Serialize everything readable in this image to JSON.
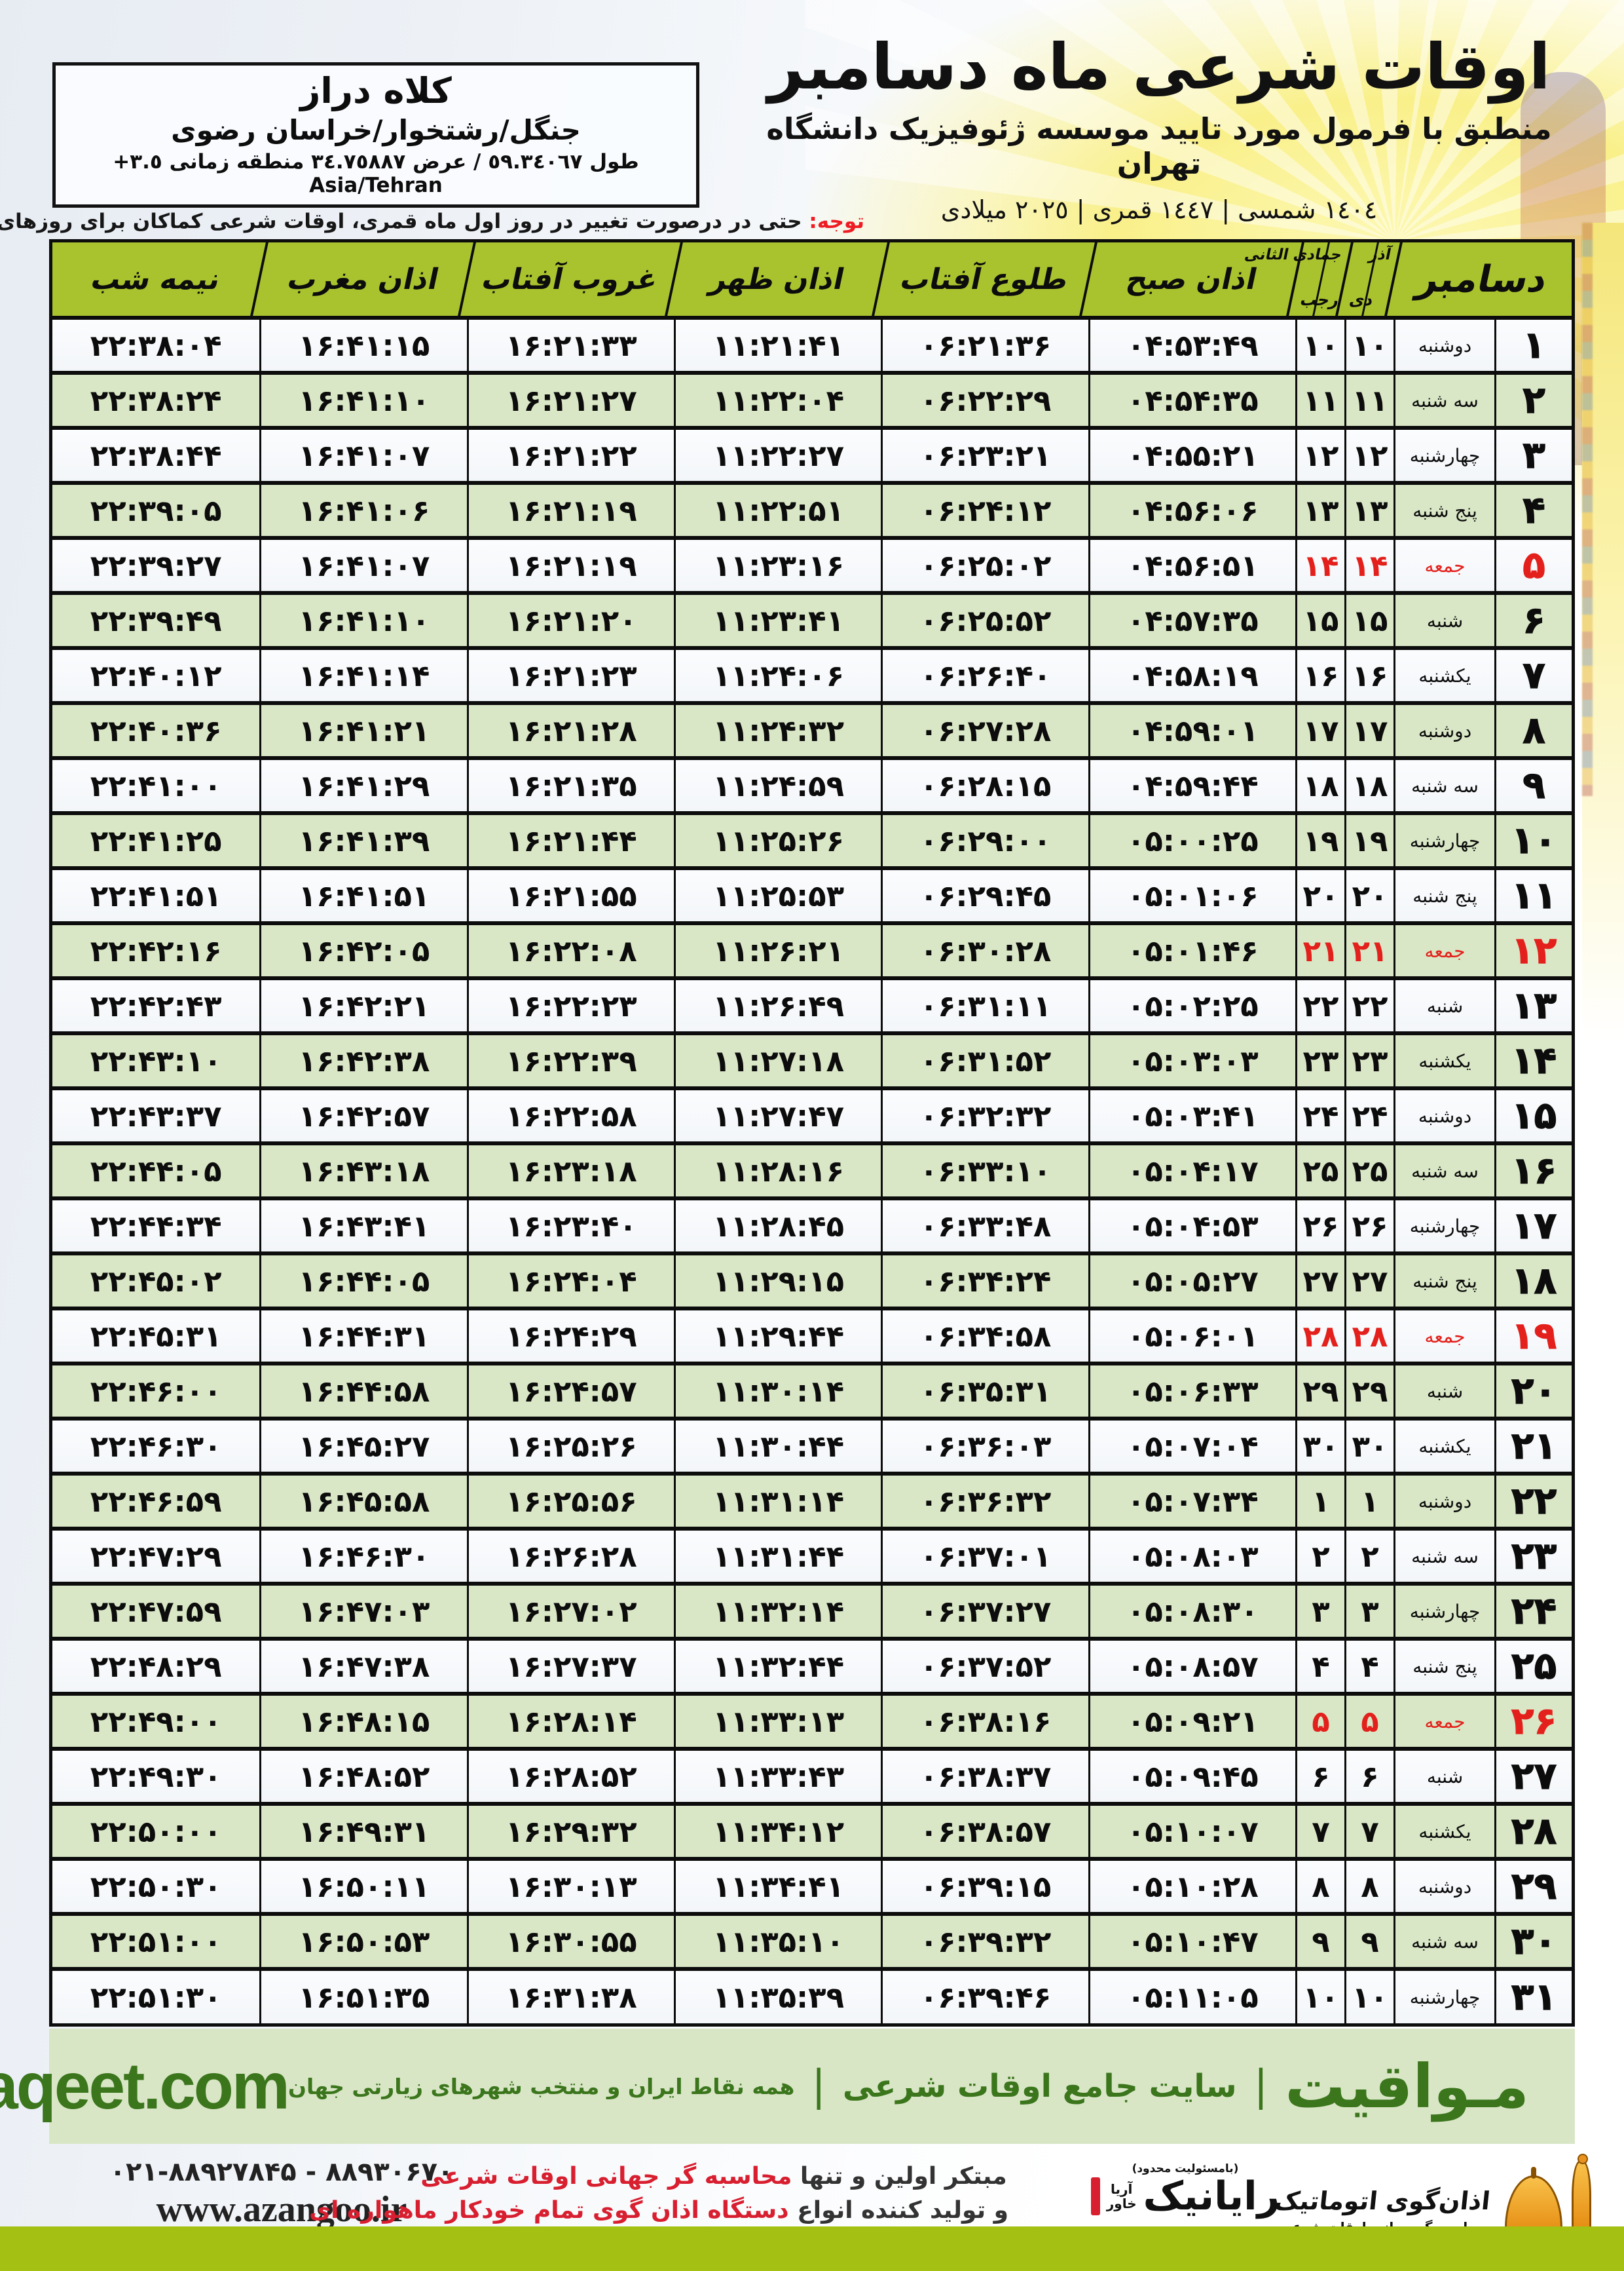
{
  "header": {
    "title": "اوقات شرعی ماه دسامبر",
    "subtitle": "منطبق با فرمول مورد تایید موسسه ژئوفیزیک دانشگاه تهران",
    "date_line": "١٤٠٤ شمسی | ١٤٤٧ قمری | ٢٠٢٥ میلادی"
  },
  "location": {
    "name": "کلاه دراز",
    "region": "جنگل/رشتخوار/خراسان رضوی",
    "coords": "طول ٥٩.٣٤٠٦٧ / عرض ٣٤.٧٥٨٨٧ منطقه زمانی ٣.٥+ Asia/Tehran"
  },
  "notice": {
    "label": "توجه:",
    "text": "حتی در درصورت تغییر در روز اول ماه قمری، اوقات شرعی کماکان برای روزهای شمسی و میلادی معتبر است."
  },
  "table": {
    "headers": {
      "december": "دسامبر",
      "solar_top": "آذر",
      "solar_bottom": "دی",
      "lunar_top": "جمادی الثانی",
      "lunar_bottom": "رجب",
      "sobh": "اذان صبح",
      "tolu": "طلوع آفتاب",
      "zohr": "اذان ظهر",
      "ghorub": "غروب آفتاب",
      "maghreb": "اذان مغرب",
      "nime": "نیمه شب"
    },
    "rows": [
      {
        "day": "۱",
        "weekday": "دوشنبه",
        "solar": "۱۰",
        "lunar": "۱۰",
        "sobh": "۰۴:۵۳:۴۹",
        "tolu": "۰۶:۲۱:۳۶",
        "zohr": "۱۱:۲۱:۴۱",
        "ghorub": "۱۶:۲۱:۳۳",
        "maghreb": "۱۶:۴۱:۱۵",
        "nime": "۲۲:۳۸:۰۴",
        "friday": false
      },
      {
        "day": "۲",
        "weekday": "سه شنبه",
        "solar": "۱۱",
        "lunar": "۱۱",
        "sobh": "۰۴:۵۴:۳۵",
        "tolu": "۰۶:۲۲:۲۹",
        "zohr": "۱۱:۲۲:۰۴",
        "ghorub": "۱۶:۲۱:۲۷",
        "maghreb": "۱۶:۴۱:۱۰",
        "nime": "۲۲:۳۸:۲۴",
        "friday": false
      },
      {
        "day": "۳",
        "weekday": "چهارشنبه",
        "solar": "۱۲",
        "lunar": "۱۲",
        "sobh": "۰۴:۵۵:۲۱",
        "tolu": "۰۶:۲۳:۲۱",
        "zohr": "۱۱:۲۲:۲۷",
        "ghorub": "۱۶:۲۱:۲۲",
        "maghreb": "۱۶:۴۱:۰۷",
        "nime": "۲۲:۳۸:۴۴",
        "friday": false
      },
      {
        "day": "۴",
        "weekday": "پنج شنبه",
        "solar": "۱۳",
        "lunar": "۱۳",
        "sobh": "۰۴:۵۶:۰۶",
        "tolu": "۰۶:۲۴:۱۲",
        "zohr": "۱۱:۲۲:۵۱",
        "ghorub": "۱۶:۲۱:۱۹",
        "maghreb": "۱۶:۴۱:۰۶",
        "nime": "۲۲:۳۹:۰۵",
        "friday": false
      },
      {
        "day": "۵",
        "weekday": "جمعه",
        "solar": "۱۴",
        "lunar": "۱۴",
        "sobh": "۰۴:۵۶:۵۱",
        "tolu": "۰۶:۲۵:۰۲",
        "zohr": "۱۱:۲۳:۱۶",
        "ghorub": "۱۶:۲۱:۱۹",
        "maghreb": "۱۶:۴۱:۰۷",
        "nime": "۲۲:۳۹:۲۷",
        "friday": true
      },
      {
        "day": "۶",
        "weekday": "شنبه",
        "solar": "۱۵",
        "lunar": "۱۵",
        "sobh": "۰۴:۵۷:۳۵",
        "tolu": "۰۶:۲۵:۵۲",
        "zohr": "۱۱:۲۳:۴۱",
        "ghorub": "۱۶:۲۱:۲۰",
        "maghreb": "۱۶:۴۱:۱۰",
        "nime": "۲۲:۳۹:۴۹",
        "friday": false
      },
      {
        "day": "۷",
        "weekday": "یکشنبه",
        "solar": "۱۶",
        "lunar": "۱۶",
        "sobh": "۰۴:۵۸:۱۹",
        "tolu": "۰۶:۲۶:۴۰",
        "zohr": "۱۱:۲۴:۰۶",
        "ghorub": "۱۶:۲۱:۲۳",
        "maghreb": "۱۶:۴۱:۱۴",
        "nime": "۲۲:۴۰:۱۲",
        "friday": false
      },
      {
        "day": "۸",
        "weekday": "دوشنبه",
        "solar": "۱۷",
        "lunar": "۱۷",
        "sobh": "۰۴:۵۹:۰۱",
        "tolu": "۰۶:۲۷:۲۸",
        "zohr": "۱۱:۲۴:۳۲",
        "ghorub": "۱۶:۲۱:۲۸",
        "maghreb": "۱۶:۴۱:۲۱",
        "nime": "۲۲:۴۰:۳۶",
        "friday": false
      },
      {
        "day": "۹",
        "weekday": "سه شنبه",
        "solar": "۱۸",
        "lunar": "۱۸",
        "sobh": "۰۴:۵۹:۴۴",
        "tolu": "۰۶:۲۸:۱۵",
        "zohr": "۱۱:۲۴:۵۹",
        "ghorub": "۱۶:۲۱:۳۵",
        "maghreb": "۱۶:۴۱:۲۹",
        "nime": "۲۲:۴۱:۰۰",
        "friday": false
      },
      {
        "day": "۱۰",
        "weekday": "چهارشنبه",
        "solar": "۱۹",
        "lunar": "۱۹",
        "sobh": "۰۵:۰۰:۲۵",
        "tolu": "۰۶:۲۹:۰۰",
        "zohr": "۱۱:۲۵:۲۶",
        "ghorub": "۱۶:۲۱:۴۴",
        "maghreb": "۱۶:۴۱:۳۹",
        "nime": "۲۲:۴۱:۲۵",
        "friday": false
      },
      {
        "day": "۱۱",
        "weekday": "پنج شنبه",
        "solar": "۲۰",
        "lunar": "۲۰",
        "sobh": "۰۵:۰۱:۰۶",
        "tolu": "۰۶:۲۹:۴۵",
        "zohr": "۱۱:۲۵:۵۳",
        "ghorub": "۱۶:۲۱:۵۵",
        "maghreb": "۱۶:۴۱:۵۱",
        "nime": "۲۲:۴۱:۵۱",
        "friday": false
      },
      {
        "day": "۱۲",
        "weekday": "جمعه",
        "solar": "۲۱",
        "lunar": "۲۱",
        "sobh": "۰۵:۰۱:۴۶",
        "tolu": "۰۶:۳۰:۲۸",
        "zohr": "۱۱:۲۶:۲۱",
        "ghorub": "۱۶:۲۲:۰۸",
        "maghreb": "۱۶:۴۲:۰۵",
        "nime": "۲۲:۴۲:۱۶",
        "friday": true
      },
      {
        "day": "۱۳",
        "weekday": "شنبه",
        "solar": "۲۲",
        "lunar": "۲۲",
        "sobh": "۰۵:۰۲:۲۵",
        "tolu": "۰۶:۳۱:۱۱",
        "zohr": "۱۱:۲۶:۴۹",
        "ghorub": "۱۶:۲۲:۲۳",
        "maghreb": "۱۶:۴۲:۲۱",
        "nime": "۲۲:۴۲:۴۳",
        "friday": false
      },
      {
        "day": "۱۴",
        "weekday": "یکشنبه",
        "solar": "۲۳",
        "lunar": "۲۳",
        "sobh": "۰۵:۰۳:۰۳",
        "tolu": "۰۶:۳۱:۵۲",
        "zohr": "۱۱:۲۷:۱۸",
        "ghorub": "۱۶:۲۲:۳۹",
        "maghreb": "۱۶:۴۲:۳۸",
        "nime": "۲۲:۴۳:۱۰",
        "friday": false
      },
      {
        "day": "۱۵",
        "weekday": "دوشنبه",
        "solar": "۲۴",
        "lunar": "۲۴",
        "sobh": "۰۵:۰۳:۴۱",
        "tolu": "۰۶:۳۲:۳۲",
        "zohr": "۱۱:۲۷:۴۷",
        "ghorub": "۱۶:۲۲:۵۸",
        "maghreb": "۱۶:۴۲:۵۷",
        "nime": "۲۲:۴۳:۳۷",
        "friday": false
      },
      {
        "day": "۱۶",
        "weekday": "سه شنبه",
        "solar": "۲۵",
        "lunar": "۲۵",
        "sobh": "۰۵:۰۴:۱۷",
        "tolu": "۰۶:۳۳:۱۰",
        "zohr": "۱۱:۲۸:۱۶",
        "ghorub": "۱۶:۲۳:۱۸",
        "maghreb": "۱۶:۴۳:۱۸",
        "nime": "۲۲:۴۴:۰۵",
        "friday": false
      },
      {
        "day": "۱۷",
        "weekday": "چهارشنبه",
        "solar": "۲۶",
        "lunar": "۲۶",
        "sobh": "۰۵:۰۴:۵۳",
        "tolu": "۰۶:۳۳:۴۸",
        "zohr": "۱۱:۲۸:۴۵",
        "ghorub": "۱۶:۲۳:۴۰",
        "maghreb": "۱۶:۴۳:۴۱",
        "nime": "۲۲:۴۴:۳۴",
        "friday": false
      },
      {
        "day": "۱۸",
        "weekday": "پنج شنبه",
        "solar": "۲۷",
        "lunar": "۲۷",
        "sobh": "۰۵:۰۵:۲۷",
        "tolu": "۰۶:۳۴:۲۴",
        "zohr": "۱۱:۲۹:۱۵",
        "ghorub": "۱۶:۲۴:۰۴",
        "maghreb": "۱۶:۴۴:۰۵",
        "nime": "۲۲:۴۵:۰۲",
        "friday": false
      },
      {
        "day": "۱۹",
        "weekday": "جمعه",
        "solar": "۲۸",
        "lunar": "۲۸",
        "sobh": "۰۵:۰۶:۰۱",
        "tolu": "۰۶:۳۴:۵۸",
        "zohr": "۱۱:۲۹:۴۴",
        "ghorub": "۱۶:۲۴:۲۹",
        "maghreb": "۱۶:۴۴:۳۱",
        "nime": "۲۲:۴۵:۳۱",
        "friday": true
      },
      {
        "day": "۲۰",
        "weekday": "شنبه",
        "solar": "۲۹",
        "lunar": "۲۹",
        "sobh": "۰۵:۰۶:۳۳",
        "tolu": "۰۶:۳۵:۳۱",
        "zohr": "۱۱:۳۰:۱۴",
        "ghorub": "۱۶:۲۴:۵۷",
        "maghreb": "۱۶:۴۴:۵۸",
        "nime": "۲۲:۴۶:۰۰",
        "friday": false
      },
      {
        "day": "۲۱",
        "weekday": "یکشنبه",
        "solar": "۳۰",
        "lunar": "۳۰",
        "sobh": "۰۵:۰۷:۰۴",
        "tolu": "۰۶:۳۶:۰۳",
        "zohr": "۱۱:۳۰:۴۴",
        "ghorub": "۱۶:۲۵:۲۶",
        "maghreb": "۱۶:۴۵:۲۷",
        "nime": "۲۲:۴۶:۳۰",
        "friday": false
      },
      {
        "day": "۲۲",
        "weekday": "دوشنبه",
        "solar": "۱",
        "lunar": "۱",
        "sobh": "۰۵:۰۷:۳۴",
        "tolu": "۰۶:۳۶:۳۲",
        "zohr": "۱۱:۳۱:۱۴",
        "ghorub": "۱۶:۲۵:۵۶",
        "maghreb": "۱۶:۴۵:۵۸",
        "nime": "۲۲:۴۶:۵۹",
        "friday": false
      },
      {
        "day": "۲۳",
        "weekday": "سه شنبه",
        "solar": "۲",
        "lunar": "۲",
        "sobh": "۰۵:۰۸:۰۳",
        "tolu": "۰۶:۳۷:۰۱",
        "zohr": "۱۱:۳۱:۴۴",
        "ghorub": "۱۶:۲۶:۲۸",
        "maghreb": "۱۶:۴۶:۳۰",
        "nime": "۲۲:۴۷:۲۹",
        "friday": false
      },
      {
        "day": "۲۴",
        "weekday": "چهارشنبه",
        "solar": "۳",
        "lunar": "۳",
        "sobh": "۰۵:۰۸:۳۰",
        "tolu": "۰۶:۳۷:۲۷",
        "zohr": "۱۱:۳۲:۱۴",
        "ghorub": "۱۶:۲۷:۰۲",
        "maghreb": "۱۶:۴۷:۰۳",
        "nime": "۲۲:۴۷:۵۹",
        "friday": false
      },
      {
        "day": "۲۵",
        "weekday": "پنج شنبه",
        "solar": "۴",
        "lunar": "۴",
        "sobh": "۰۵:۰۸:۵۷",
        "tolu": "۰۶:۳۷:۵۲",
        "zohr": "۱۱:۳۲:۴۴",
        "ghorub": "۱۶:۲۷:۳۷",
        "maghreb": "۱۶:۴۷:۳۸",
        "nime": "۲۲:۴۸:۲۹",
        "friday": false
      },
      {
        "day": "۲۶",
        "weekday": "جمعه",
        "solar": "۵",
        "lunar": "۵",
        "sobh": "۰۵:۰۹:۲۱",
        "tolu": "۰۶:۳۸:۱۶",
        "zohr": "۱۱:۳۳:۱۳",
        "ghorub": "۱۶:۲۸:۱۴",
        "maghreb": "۱۶:۴۸:۱۵",
        "nime": "۲۲:۴۹:۰۰",
        "friday": true
      },
      {
        "day": "۲۷",
        "weekday": "شنبه",
        "solar": "۶",
        "lunar": "۶",
        "sobh": "۰۵:۰۹:۴۵",
        "tolu": "۰۶:۳۸:۳۷",
        "zohr": "۱۱:۳۳:۴۳",
        "ghorub": "۱۶:۲۸:۵۲",
        "maghreb": "۱۶:۴۸:۵۲",
        "nime": "۲۲:۴۹:۳۰",
        "friday": false
      },
      {
        "day": "۲۸",
        "weekday": "یکشنبه",
        "solar": "۷",
        "lunar": "۷",
        "sobh": "۰۵:۱۰:۰۷",
        "tolu": "۰۶:۳۸:۵۷",
        "zohr": "۱۱:۳۴:۱۲",
        "ghorub": "۱۶:۲۹:۳۲",
        "maghreb": "۱۶:۴۹:۳۱",
        "nime": "۲۲:۵۰:۰۰",
        "friday": false
      },
      {
        "day": "۲۹",
        "weekday": "دوشنبه",
        "solar": "۸",
        "lunar": "۸",
        "sobh": "۰۵:۱۰:۲۸",
        "tolu": "۰۶:۳۹:۱۵",
        "zohr": "۱۱:۳۴:۴۱",
        "ghorub": "۱۶:۳۰:۱۳",
        "maghreb": "۱۶:۵۰:۱۱",
        "nime": "۲۲:۵۰:۳۰",
        "friday": false
      },
      {
        "day": "۳۰",
        "weekday": "سه شنبه",
        "solar": "۹",
        "lunar": "۹",
        "sobh": "۰۵:۱۰:۴۷",
        "tolu": "۰۶:۳۹:۳۲",
        "zohr": "۱۱:۳۵:۱۰",
        "ghorub": "۱۶:۳۰:۵۵",
        "maghreb": "۱۶:۵۰:۵۳",
        "nime": "۲۲:۵۱:۰۰",
        "friday": false
      },
      {
        "day": "۳۱",
        "weekday": "چهارشنبه",
        "solar": "۱۰",
        "lunar": "۱۰",
        "sobh": "۰۵:۱۱:۰۵",
        "tolu": "۰۶:۳۹:۴۶",
        "zohr": "۱۱:۳۵:۳۹",
        "ghorub": "۱۶:۳۱:۳۸",
        "maghreb": "۱۶:۵۱:۳۵",
        "nime": "۲۲:۵۱:۳۰",
        "friday": false
      }
    ]
  },
  "mavaqeet": {
    "latin": "mavaqeet.com",
    "fa_big": "مـواقیت",
    "fa_mid": "سایت جامع اوقات شرعی",
    "fa_small": "همه نقاط ایران و منتخب شهرهای زیارتی جهان",
    "pipe": "|"
  },
  "footer": {
    "phones": "۰۲۱-۸۸۹۲۷۸۴۵ - ۸۸۹۳۰۶۷۰",
    "site": "www.azangoo.ir",
    "slogan1_black": "مبتکر اولین و تنها ",
    "slogan1_red": "محاسبه گر جهانی اوقات شرعی",
    "slogan2_black": "و تولید کننده انواع ",
    "slogan2_red": "دستگاه اذان گوی تمام خودکار ماهواره ای",
    "rayanik_note": "(بامسئولیت محدود)",
    "rayanik_suffix_top": "آریا",
    "rayanik_suffix_bottom": "خاور",
    "rayanik_name": "رایانیک",
    "azangoo_title": "اذان‌گوی اتوماتیک",
    "azangoo_sub": "محاسبه گر جهانی اوقات شرعی",
    "azangoo_brand_a": "a",
    "azangoo_brand_rest": "zangoo"
  },
  "colors": {
    "header_green": "#a9c32e",
    "row_green": "#d9e7c6",
    "mavaqeet_bg": "#d9e6c6",
    "mavaqeet_text": "#3b761d",
    "bottom_bar_green": "#a3c013",
    "friday_red": "#e3201b",
    "notice_red": "#ee1c23"
  }
}
